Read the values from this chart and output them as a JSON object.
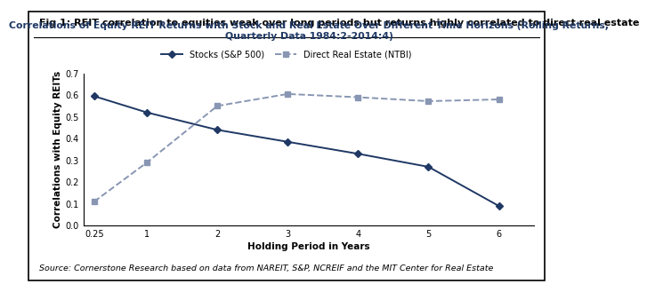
{
  "title_fig": "Fig 1: REIT correlation to equities weak over long periods but returns highly correlated to direct real estate",
  "title_chart": "Correlations of Equity REIT Returns with Stock and Real Estate Over Different Time Horizons (Rolling Returns,\nQuarterly Data 1984:2-2014:4)",
  "xlabel": "Holding Period in Years",
  "ylabel": "Correlations with Equity REITs",
  "source": "Source: Cornerstone Research based on data from NAREIT, S&P, NCREIF and the MIT Center for Real Estate",
  "x_values": [
    0.25,
    1,
    2,
    3,
    4,
    5,
    6
  ],
  "stocks_y": [
    0.595,
    0.52,
    0.44,
    0.385,
    0.33,
    0.27,
    0.09
  ],
  "realestate_y": [
    0.11,
    0.29,
    0.55,
    0.605,
    0.59,
    0.572,
    0.58
  ],
  "stocks_color": "#1f3864",
  "realestate_color": "#8896b3",
  "ylim": [
    0.0,
    0.7
  ],
  "yticks": [
    0.0,
    0.1,
    0.2,
    0.3,
    0.4,
    0.5,
    0.6,
    0.7
  ],
  "xticks": [
    0.25,
    1,
    2,
    3,
    4,
    5,
    6
  ],
  "xtick_labels": [
    "0.25",
    "1",
    "2",
    "3",
    "4",
    "5",
    "6"
  ],
  "legend_stocks": "Stocks (S&P 500)",
  "legend_realestate": "Direct Real Estate (NTBI)",
  "fig_bg": "#ffffff",
  "border_color": "#000000",
  "title_fig_fontsize": 8.0,
  "title_chart_fontsize": 7.8,
  "axis_label_fontsize": 7.5,
  "tick_fontsize": 7.0,
  "legend_fontsize": 7.0,
  "source_fontsize": 6.8
}
